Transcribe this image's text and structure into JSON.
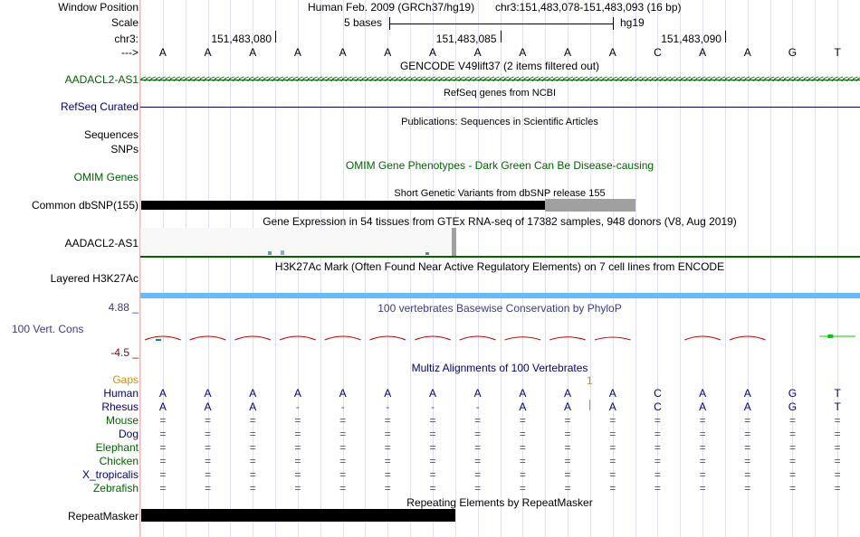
{
  "labels": {
    "window_position": "Window Position",
    "scale": "Scale",
    "chrom": "chr3:",
    "strand": "--->",
    "gencode_gene": "AADACL2-AS1",
    "refseq": "RefSeq Curated",
    "sequences": "Sequences",
    "snps": "SNPs",
    "omim": "OMIM Genes",
    "common_dbsnp": "Common dbSNP(155)",
    "gtex_gene": "AADACL2-AS1",
    "h3k27ac": "Layered H3K27Ac",
    "cons_max": "4.88 _",
    "cons_label": "100 Vert. Cons",
    "cons_min": "-4.5 _",
    "gaps": "Gaps",
    "repeatmasker": "RepeatMasker"
  },
  "header": {
    "assembly": "Human Feb. 2009 (GRCh37/hg19)",
    "position": "chr3:151,483,078-151,483,093 (16 bp)",
    "scale_text": "5 bases",
    "scale_db": "hg19",
    "coord_ticks": [
      "151,483,080",
      "151,483,085",
      "151,483,090"
    ]
  },
  "sequence": [
    "A",
    "A",
    "A",
    "A",
    "A",
    "A",
    "A",
    "A",
    "A",
    "A",
    "A",
    "C",
    "A",
    "A",
    "G",
    "T"
  ],
  "tracks": {
    "gencode_title": "GENCODE V49lift37 (2 items filtered out)",
    "refseq_title": "RefSeq genes from NCBI",
    "publications_title": "Publications: Sequences in Scientific Articles",
    "omim_title": "OMIM Gene Phenotypes - Dark Green Can Be Disease-causing",
    "dbsnp_title": "Short Genetic Variants from dbSNP release 155",
    "gtex_title": "Gene Expression in 54 tissues from GTEx RNA-seq of 17382 samples, 948 donors (V8, Aug 2019)",
    "h3k27ac_title": "H3K27Ac Mark (Often Found Near Active Regulatory Elements) on 7 cell lines from ENCODE",
    "phylop_title": "100 vertebrates Basewise Conservation by PhyloP",
    "multiz_title": "Multiz Alignments of 100 Vertebrates",
    "gap_marker": "1",
    "repeatmasker_title": "Repeating Elements by RepeatMasker"
  },
  "alignment": [
    {
      "species": "Human",
      "color": "#000080",
      "bases": [
        "A",
        "A",
        "A",
        "A",
        "A",
        "A",
        "A",
        "A",
        "A",
        "A",
        "A",
        "C",
        "A",
        "A",
        "G",
        "T"
      ]
    },
    {
      "species": "Rhesus",
      "color": "#000080",
      "bases": [
        "A",
        "A",
        "A",
        "-",
        "-",
        "-",
        "-",
        "-",
        "A",
        "A",
        "A",
        "C",
        "A",
        "A",
        "G",
        "T"
      ]
    },
    {
      "species": "Mouse",
      "color": "#006400",
      "bases": [
        "=",
        "=",
        "=",
        "=",
        "=",
        "=",
        "=",
        "=",
        "=",
        "=",
        "=",
        "=",
        "=",
        "=",
        "=",
        "="
      ]
    },
    {
      "species": "Dog",
      "color": "#000080",
      "bases": [
        "=",
        "=",
        "=",
        "=",
        "=",
        "=",
        "=",
        "=",
        "=",
        "=",
        "=",
        "=",
        "=",
        "=",
        "=",
        "="
      ]
    },
    {
      "species": "Elephant",
      "color": "#006400",
      "bases": [
        "=",
        "=",
        "=",
        "=",
        "=",
        "=",
        "=",
        "=",
        "=",
        "=",
        "=",
        "=",
        "=",
        "=",
        "=",
        "="
      ]
    },
    {
      "species": "Chicken",
      "color": "#006400",
      "bases": [
        "=",
        "=",
        "=",
        "=",
        "=",
        "=",
        "=",
        "=",
        "=",
        "=",
        "=",
        "=",
        "=",
        "=",
        "=",
        "="
      ]
    },
    {
      "species": "X_tropicalis",
      "color": "#000080",
      "bases": [
        "=",
        "=",
        "=",
        "=",
        "=",
        "=",
        "=",
        "=",
        "=",
        "=",
        "=",
        "=",
        "=",
        "=",
        "=",
        "="
      ]
    },
    {
      "species": "Zebrafish",
      "color": "#006400",
      "bases": [
        "=",
        "=",
        "=",
        "=",
        "=",
        "=",
        "=",
        "=",
        "=",
        "=",
        "=",
        "=",
        "=",
        "=",
        "=",
        "="
      ]
    }
  ],
  "colors": {
    "gencode": "#006400",
    "refseq": "#000080",
    "phylop_pos": "#cc0000",
    "phylop_neg": "#00cc00",
    "h3k27ac": "#66bbff",
    "dbsnp_bar": "#000000",
    "repeat_bar": "#000000"
  }
}
